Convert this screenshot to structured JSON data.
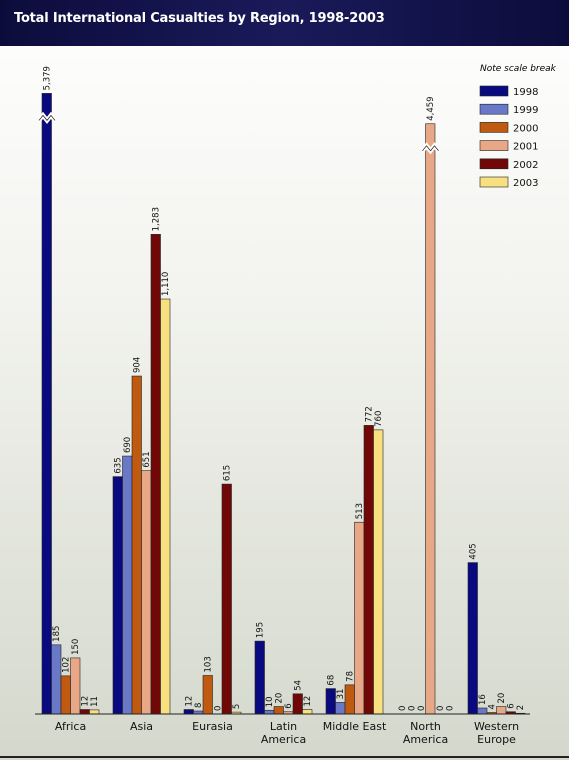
{
  "chart_data": {
    "type": "bar",
    "title": "Total International Casualties by Region, 1998-2003",
    "note": "Note scale break",
    "categories": [
      "Africa",
      "Asia",
      "Eurasia",
      "Latin America",
      "Middle East",
      "North America",
      "Western Europe"
    ],
    "series": [
      {
        "name": "1998",
        "color": "#0a0a80",
        "values": [
          5379,
          635,
          12,
          195,
          68,
          0,
          405
        ],
        "value_labels": [
          "5,379",
          "635",
          "12",
          "195",
          "68",
          "0",
          "405"
        ]
      },
      {
        "name": "1999",
        "color": "#6a78c8",
        "values": [
          185,
          690,
          8,
          10,
          31,
          0,
          16
        ]
      },
      {
        "name": "2000",
        "color": "#c05a10",
        "values": [
          102,
          904,
          103,
          20,
          78,
          0,
          4
        ]
      },
      {
        "name": "2001",
        "color": "#e8a888",
        "values": [
          150,
          651,
          0,
          6,
          513,
          4459,
          20
        ],
        "value_labels": [
          "150",
          "651",
          "0",
          "6",
          "513",
          "4,459",
          "20"
        ]
      },
      {
        "name": "2002",
        "color": "#700808",
        "values": [
          12,
          1283,
          615,
          54,
          772,
          0,
          6
        ],
        "value_labels": [
          "12",
          "1,283",
          "615",
          "54",
          "772",
          "0",
          "6"
        ]
      },
      {
        "name": "2003",
        "color": "#f8e080",
        "values": [
          11,
          1110,
          5,
          12,
          760,
          0,
          2
        ],
        "value_labels": [
          "11",
          "1,110",
          "5",
          "12",
          "760",
          "0",
          "2"
        ]
      }
    ],
    "ylim": [
      0,
      1300
    ],
    "scale_break": true,
    "legend": "top-right"
  }
}
